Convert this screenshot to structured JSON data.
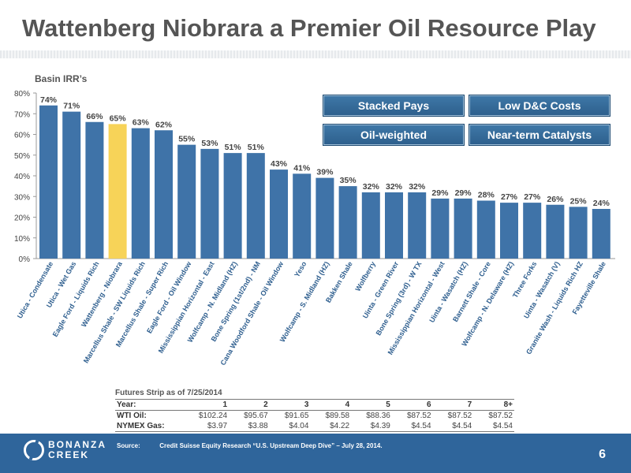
{
  "slide": {
    "title": "Wattenberg Niobrara a Premier Oil Resource Play",
    "page_number": "6"
  },
  "callouts": [
    "Stacked Pays",
    "Low D&C Costs",
    "Oil-weighted",
    "Near-term Catalysts"
  ],
  "chart_data": {
    "type": "bar",
    "title": "Basin IRR’s",
    "ylim": [
      0,
      80
    ],
    "yticks": [
      "0%",
      "10%",
      "20%",
      "30%",
      "40%",
      "50%",
      "60%",
      "70%",
      "80%"
    ],
    "categories": [
      "Utica - Condensate",
      "Utica - Wet Gas",
      "Eagle Ford - Liquids Rich",
      "Wattenberg - Niobrara",
      "Marcellus Shale - SW Liquids Rich",
      "Marcellus Shale - Super Rich",
      "Eagle Ford - Oil Window",
      "Mississippian Horizontal - East",
      "Wolfcamp - N. Midland (HZ)",
      "Bone Spring (1st/2nd) - NM",
      "Cana Woodford Shale - Oil Window",
      "Yeso",
      "Wolfcamp - S. Midland (HZ)",
      "Bakken Shale",
      "Wolfberry",
      "Uinta - Green River",
      "Bone Spring (3rd) - W TX",
      "Mississippian Horizontal - West",
      "Uinta - Wasatch (HZ)",
      "Barnett Shale - Core",
      "Wolfcamp - N. Delaware (HZ)",
      "Three Forks",
      "Uinta - Wasatch (V)",
      "Granite Wash - Liquids Rich HZ",
      "Fayetteville Shale"
    ],
    "values": [
      74,
      71,
      66,
      65,
      63,
      62,
      55,
      53,
      51,
      51,
      43,
      41,
      39,
      35,
      32,
      32,
      32,
      29,
      29,
      28,
      27,
      27,
      26,
      25,
      24
    ],
    "value_labels": [
      "74%",
      "71%",
      "66%",
      "65%",
      "63%",
      "62%",
      "55%",
      "53%",
      "51%",
      "51%",
      "43%",
      "41%",
      "39%",
      "35%",
      "32%",
      "32%",
      "32%",
      "29%",
      "29%",
      "28%",
      "27%",
      "27%",
      "26%",
      "25%",
      "24%"
    ],
    "highlight_category": "Wattenberg - Niobrara",
    "colors": {
      "bar": "#3f73a8",
      "highlight": "#f7d358"
    }
  },
  "futures": {
    "title": "Futures Strip as of 7/25/2014",
    "header": [
      "Year:",
      "1",
      "2",
      "3",
      "4",
      "5",
      "6",
      "7",
      "8+"
    ],
    "rows": [
      [
        "WTI Oil:",
        "$102.24",
        "$95.67",
        "$91.65",
        "$89.58",
        "$88.36",
        "$87.52",
        "$87.52",
        "$87.52"
      ],
      [
        "NYMEX Gas:",
        "$3.97",
        "$3.88",
        "$4.04",
        "$4.22",
        "$4.39",
        "$4.54",
        "$4.54",
        "$4.54"
      ]
    ]
  },
  "footer": {
    "logo_line1": "BONANZA",
    "logo_line2": "CREEK",
    "source_label": "Source:",
    "source_text": "Credit Suisse Equity Research “U.S. Upstream Deep Dive” – July 28, 2014."
  }
}
